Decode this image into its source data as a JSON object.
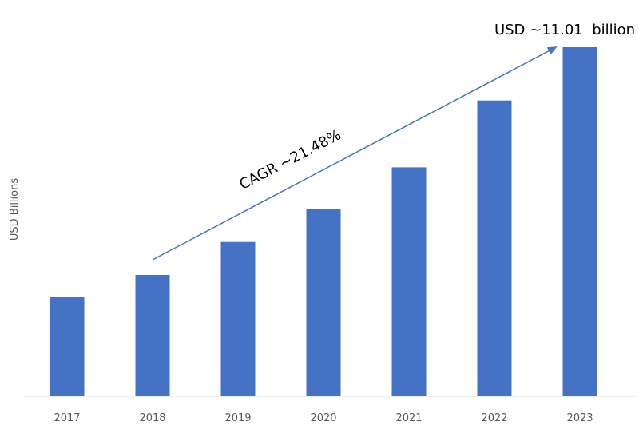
{
  "chart_data": {
    "type": "bar",
    "title": "",
    "xlabel": "",
    "ylabel": "USD Billions",
    "categories": [
      "2017",
      "2018",
      "2019",
      "2020",
      "2021",
      "2022",
      "2023"
    ],
    "values": [
      3.15,
      3.83,
      4.87,
      5.91,
      7.22,
      9.33,
      11.01
    ],
    "ylim": [
      0,
      11.01
    ],
    "grid": false,
    "legend": "none",
    "bar_color": "#4472C4",
    "annotations": {
      "cagr": "CAGR ~21.48%",
      "end_value": "USD ~11.01  billion"
    },
    "arrow_color": "#4472C4"
  }
}
